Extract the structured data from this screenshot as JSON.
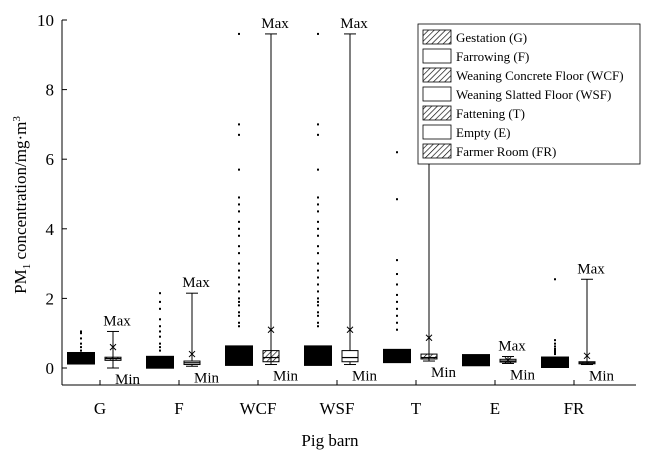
{
  "chart_data": {
    "type": "box",
    "xlabel": "Pig barn",
    "ylabel_main": "PM",
    "ylabel_sub": "1",
    "ylabel_rest": " concentration/mg·m",
    "ylabel_sup": "3",
    "ylim": [
      0,
      10
    ],
    "yticks": [
      0,
      2,
      4,
      6,
      8,
      10
    ],
    "categories": [
      "G",
      "F",
      "WCF",
      "WSF",
      "T",
      "E",
      "FR"
    ],
    "legend_placement": "top-right",
    "legend": [
      {
        "label": "Gestation (G)",
        "hatched": true
      },
      {
        "label": "Farrowing (F)",
        "hatched": false
      },
      {
        "label": "Weaning Concrete Floor (WCF)",
        "hatched": true
      },
      {
        "label": "Weaning Slatted Floor (WSF)",
        "hatched": false
      },
      {
        "label": "Fattening (T)",
        "hatched": true
      },
      {
        "label": "Empty (E)",
        "hatched": false
      },
      {
        "label": "Farmer Room (FR)",
        "hatched": true
      }
    ],
    "annotations": {
      "max_label": "Max",
      "min_label": "Min"
    },
    "series": [
      {
        "category": "G",
        "min": 0.0,
        "q1": 0.22,
        "median": 0.27,
        "q3": 0.31,
        "max": 1.05,
        "mean": 0.6,
        "outliers": [
          0.5,
          0.6,
          0.7,
          0.85,
          1.0,
          1.05
        ]
      },
      {
        "category": "F",
        "min": 0.05,
        "q1": 0.1,
        "median": 0.15,
        "q3": 0.2,
        "max": 2.15,
        "mean": 0.4,
        "outliers": [
          0.5,
          0.6,
          0.7,
          0.9,
          1.05,
          1.2,
          1.4,
          1.7,
          1.9,
          2.15
        ]
      },
      {
        "category": "WCF",
        "min": 0.1,
        "q1": 0.18,
        "median": 0.3,
        "q3": 0.5,
        "max": 9.6,
        "mean": 1.1,
        "outliers": [
          1.2,
          1.3,
          1.5,
          1.6,
          1.8,
          1.9,
          2.0,
          2.2,
          2.4,
          2.6,
          2.8,
          3.0,
          3.3,
          3.5,
          3.8,
          4.0,
          4.2,
          4.5,
          4.7,
          4.9,
          5.7,
          6.7,
          7.0,
          9.6
        ]
      },
      {
        "category": "WSF",
        "min": 0.1,
        "q1": 0.18,
        "median": 0.3,
        "q3": 0.5,
        "max": 9.6,
        "mean": 1.1,
        "outliers": [
          1.2,
          1.3,
          1.5,
          1.6,
          1.8,
          1.9,
          2.0,
          2.2,
          2.4,
          2.6,
          2.8,
          3.0,
          3.3,
          3.5,
          3.8,
          4.0,
          4.2,
          4.5,
          4.7,
          4.9,
          5.7,
          6.7,
          7.0,
          9.6
        ]
      },
      {
        "category": "T",
        "min": 0.2,
        "q1": 0.26,
        "median": 0.3,
        "q3": 0.4,
        "max": 6.2,
        "mean": 0.87,
        "outliers": [
          1.1,
          1.3,
          1.5,
          1.7,
          1.9,
          2.1,
          2.4,
          2.7,
          3.1,
          4.85,
          6.2
        ]
      },
      {
        "category": "E",
        "min": 0.13,
        "q1": 0.17,
        "median": 0.2,
        "q3": 0.25,
        "max": 0.33,
        "mean": 0.22,
        "outliers": []
      },
      {
        "category": "FR",
        "min": 0.1,
        "q1": 0.12,
        "median": 0.15,
        "q3": 0.18,
        "max": 2.55,
        "mean": 0.35,
        "outliers": [
          0.4,
          0.45,
          0.5,
          0.55,
          0.62,
          0.7,
          0.8,
          2.55
        ]
      }
    ]
  }
}
